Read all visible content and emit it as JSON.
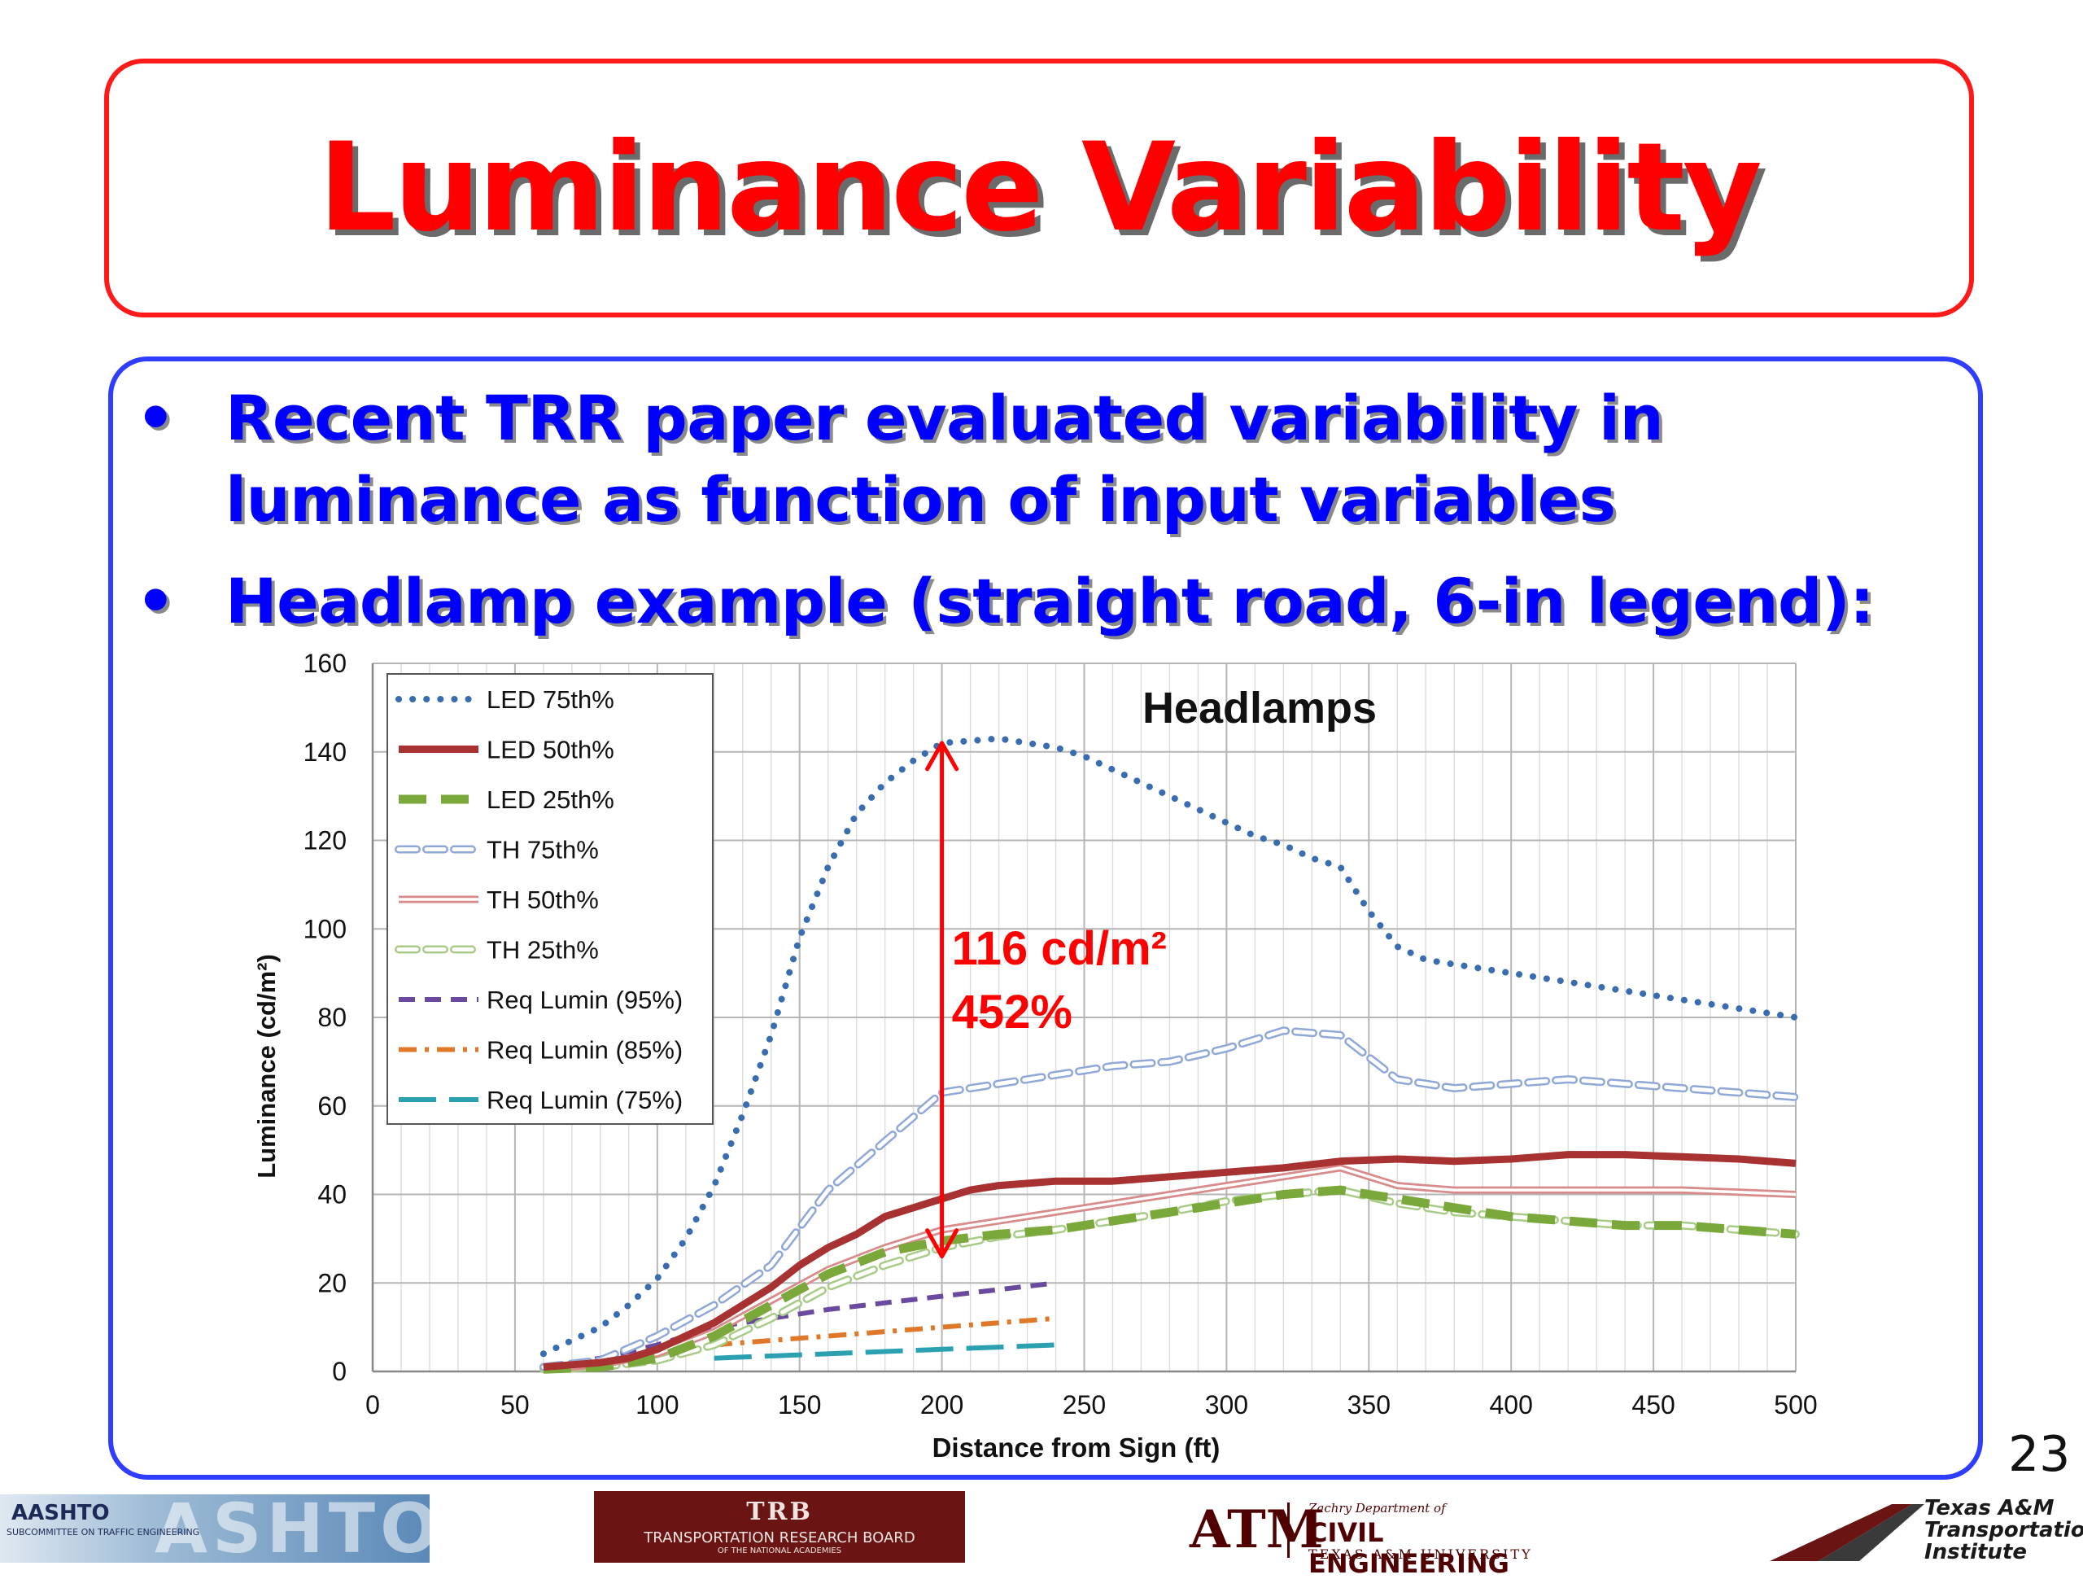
{
  "slide": {
    "title": "Luminance Variability",
    "bullets": [
      {
        "line1": "Recent TRR paper evaluated variability in",
        "line2": "luminance as function of input variables"
      },
      {
        "line1": "Headlamp example (straight road, 6-in legend):"
      }
    ],
    "bullet_glyph": "•",
    "page_number": "23"
  },
  "logos": {
    "aashto_main": "AASHTO",
    "aashto_sub": "SUBCOMMITTEE ON TRAFFIC ENGINEERING",
    "aashto_ghost": "ASHTO",
    "trb_main": "TRB",
    "trb_sub": "TRANSPORTATION RESEARCH BOARD",
    "trb_sub2": "OF THE NATIONAL ACADEMIES",
    "tamu_mark": "ATM",
    "tamu_line1": "Zachry Department of",
    "tamu_line2": "CIVIL ENGINEERING",
    "tamu_line3": "TEXAS A&M UNIVERSITY",
    "tti_line1": "Texas A&M",
    "tti_line2": "Transportation",
    "tti_line3": "Institute"
  },
  "colors": {
    "title_red": "#ff0000",
    "bullet_blue": "#0000ff",
    "annotation_red": "#ff0000"
  },
  "chart_data": {
    "type": "line",
    "title": "Headlamps",
    "xlabel": "Distance from Sign (ft)",
    "ylabel": "Luminance (cd/m²)",
    "xlim": [
      0,
      500
    ],
    "ylim": [
      0,
      160
    ],
    "xticks": [
      0,
      50,
      100,
      150,
      200,
      250,
      300,
      350,
      400,
      450,
      500
    ],
    "yticks": [
      0,
      20,
      40,
      60,
      80,
      100,
      120,
      140,
      160
    ],
    "grid": true,
    "legend_position": "top-left",
    "series": [
      {
        "name": "LED 75th%",
        "color": "#3a6db0",
        "style": "dotted",
        "x": [
          60,
          70,
          80,
          90,
          100,
          110,
          120,
          130,
          140,
          150,
          160,
          170,
          180,
          190,
          200,
          210,
          220,
          230,
          240,
          250,
          260,
          270,
          280,
          290,
          300,
          310,
          320,
          330,
          340,
          350,
          360,
          370,
          380,
          400,
          420,
          440,
          460,
          480,
          500
        ],
        "y": [
          4,
          7,
          10,
          15,
          21,
          30,
          42,
          58,
          76,
          98,
          114,
          126,
          133,
          138,
          142,
          142.5,
          143,
          142,
          141,
          139,
          136,
          133,
          130,
          127,
          124,
          121,
          119,
          116,
          114,
          104,
          96,
          93,
          92,
          90,
          88,
          86,
          84,
          82,
          80
        ]
      },
      {
        "name": "LED 50th%",
        "color": "#a83232",
        "style": "solid",
        "x": [
          60,
          70,
          80,
          90,
          100,
          110,
          120,
          130,
          140,
          150,
          160,
          170,
          180,
          190,
          200,
          210,
          220,
          240,
          260,
          280,
          300,
          320,
          340,
          360,
          380,
          400,
          420,
          440,
          460,
          480,
          500
        ],
        "y": [
          1,
          1.5,
          2,
          3,
          5,
          8,
          11,
          15,
          19,
          24,
          28,
          31,
          35,
          37,
          39,
          41,
          42,
          43,
          43,
          44,
          45,
          46,
          47.5,
          48,
          47.5,
          48,
          49,
          49,
          48.5,
          48,
          47
        ]
      },
      {
        "name": "LED 25th%",
        "color": "#7aa83a",
        "style": "dashed",
        "x": [
          60,
          80,
          100,
          120,
          140,
          160,
          180,
          200,
          220,
          240,
          260,
          280,
          300,
          320,
          340,
          360,
          380,
          400,
          420,
          440,
          460,
          480,
          500
        ],
        "y": [
          0.5,
          1,
          3,
          8,
          15,
          22,
          27,
          29.5,
          31,
          32,
          34,
          36,
          38,
          40,
          41,
          39,
          37,
          35,
          34,
          33,
          33,
          32,
          31
        ]
      },
      {
        "name": "TH 75th%",
        "color": "#8fa8d8",
        "style": "hollow-dash",
        "x": [
          60,
          80,
          100,
          120,
          140,
          160,
          180,
          200,
          220,
          240,
          260,
          280,
          300,
          320,
          340,
          360,
          380,
          400,
          420,
          440,
          460,
          480,
          500
        ],
        "y": [
          1,
          2.5,
          8,
          15,
          24,
          41,
          52,
          63,
          65,
          67,
          69,
          70,
          73,
          77,
          76,
          66,
          64,
          65,
          66,
          65,
          64,
          63,
          62
        ]
      },
      {
        "name": "TH 50th%",
        "color": "#d98a8a",
        "style": "double",
        "x": [
          60,
          80,
          100,
          120,
          140,
          160,
          180,
          200,
          220,
          240,
          260,
          280,
          300,
          320,
          340,
          360,
          380,
          400,
          420,
          440,
          460,
          480,
          500
        ],
        "y": [
          0.5,
          1.5,
          4,
          9,
          16,
          23,
          28,
          32,
          34,
          36,
          38,
          40,
          42,
          44,
          46,
          42,
          41,
          41,
          41,
          41,
          41,
          40.5,
          40
        ]
      },
      {
        "name": "TH 25th%",
        "color": "#a8cc88",
        "style": "hollow-dash",
        "x": [
          60,
          80,
          100,
          120,
          140,
          160,
          180,
          200,
          220,
          240,
          260,
          280,
          300,
          320,
          340,
          360,
          380,
          400,
          420,
          440,
          460,
          480,
          500
        ],
        "y": [
          0.5,
          1,
          2.5,
          6,
          12,
          19,
          24,
          28,
          30.5,
          32,
          34,
          36,
          38.5,
          40,
          41,
          38,
          36,
          35,
          34,
          33,
          33,
          32,
          31
        ]
      },
      {
        "name": "Req Lumin (95%)",
        "color": "#6a4a9e",
        "style": "dash",
        "x": [
          60,
          80,
          100,
          120,
          140,
          160,
          180,
          200,
          220,
          240
        ],
        "y": [
          1,
          3,
          6,
          10,
          12,
          14,
          15.5,
          17,
          18.5,
          20
        ]
      },
      {
        "name": "Req Lumin (85%)",
        "color": "#e0782a",
        "style": "dashdot",
        "x": [
          120,
          140,
          160,
          180,
          200,
          220,
          240
        ],
        "y": [
          6,
          7,
          8,
          9,
          10,
          11,
          12
        ]
      },
      {
        "name": "Req Lumin (75%)",
        "color": "#2aa0b0",
        "style": "longdash",
        "x": [
          120,
          140,
          160,
          180,
          200,
          220,
          240
        ],
        "y": [
          3,
          3.5,
          4,
          4.5,
          5,
          5.5,
          6
        ]
      }
    ],
    "annotation": {
      "x": 200,
      "y_top": 142,
      "y_bottom": 26,
      "line1": "116 cd/m²",
      "line2": "452%"
    }
  }
}
